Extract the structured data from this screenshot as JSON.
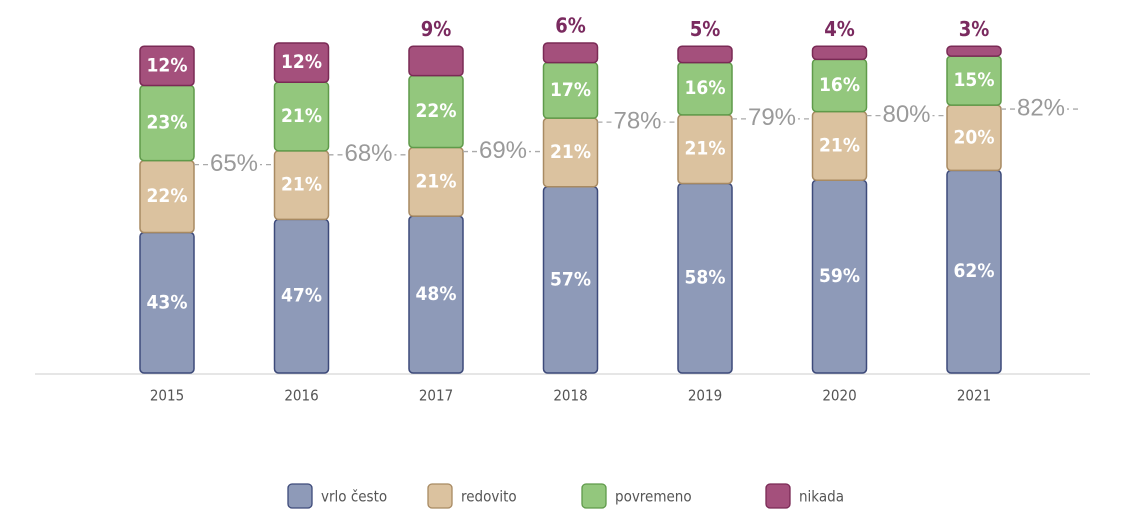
{
  "chart_data": {
    "type": "stacked_bar",
    "categories": [
      "2015",
      "2016",
      "2017",
      "2018",
      "2019",
      "2020",
      "2021"
    ],
    "series": [
      {
        "name": "vrlo često",
        "color": "#8e9ab8",
        "values": [
          43,
          47,
          48,
          57,
          58,
          59,
          62
        ],
        "value_labels": [
          "43%",
          "47%",
          "48%",
          "57%",
          "58%",
          "59%",
          "62%"
        ]
      },
      {
        "name": "redovito",
        "color": "#dbc29f",
        "values": [
          22,
          21,
          21,
          21,
          21,
          21,
          20
        ],
        "value_labels": [
          "22%",
          "21%",
          "21%",
          "21%",
          "21%",
          "21%",
          "20%"
        ]
      },
      {
        "name": "povremeno",
        "color": "#93c77d",
        "values": [
          23,
          21,
          22,
          17,
          16,
          16,
          15
        ],
        "value_labels": [
          "23%",
          "21%",
          "22%",
          "17%",
          "16%",
          "16%",
          "15%"
        ]
      },
      {
        "name": "nikada",
        "color": "#a4507c",
        "values": [
          12,
          12,
          9,
          6,
          5,
          4,
          3
        ],
        "value_labels": [
          "12%",
          "12%",
          "9%",
          "6%",
          "5%",
          "4%",
          "3%"
        ]
      }
    ],
    "annotations": [
      "65%",
      "68%",
      "69%",
      "78%",
      "79%",
      "80%",
      "82%"
    ]
  }
}
